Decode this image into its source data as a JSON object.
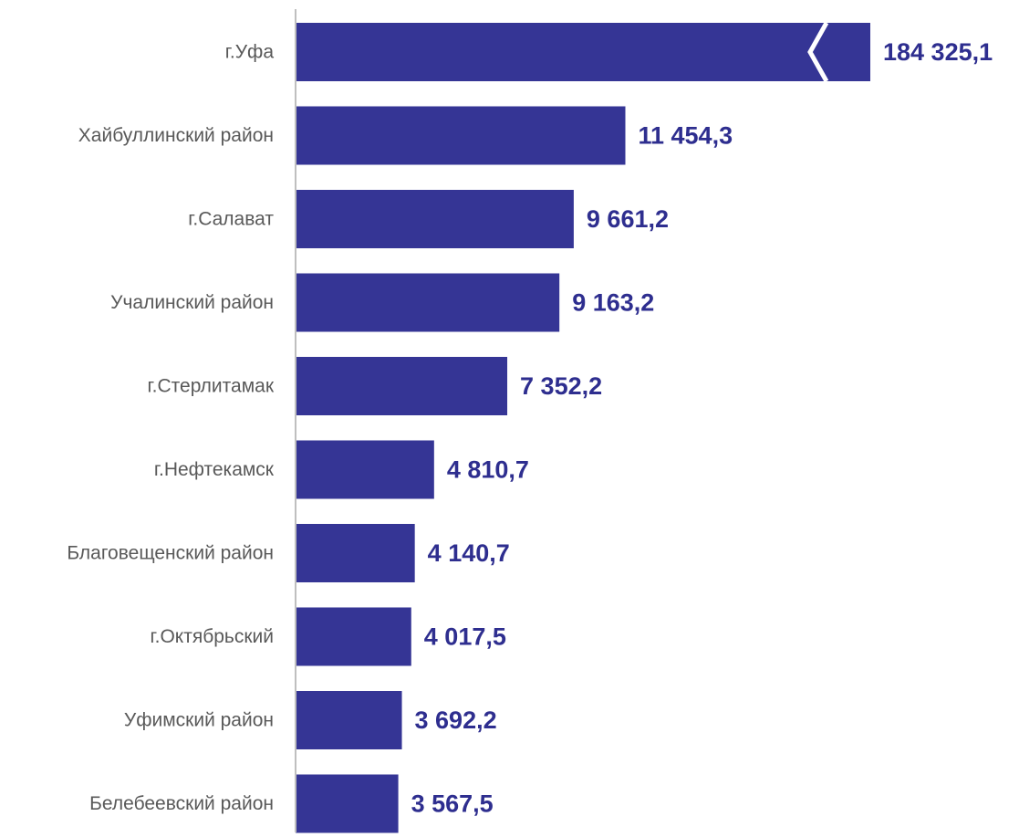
{
  "chart_data": {
    "type": "bar",
    "orientation": "horizontal",
    "axis_break": true,
    "categories": [
      "г.Уфа",
      "Хайбуллинский район",
      "г.Салават",
      "Учалинский район",
      "г.Стерлитамак",
      "г.Нефтекамск",
      "Благовещенский район",
      "г.Октябрьский",
      "Уфимский район",
      "Белебеевский район"
    ],
    "values": [
      184325.1,
      11454.3,
      9661.2,
      9163.2,
      7352.2,
      4810.7,
      4140.7,
      4017.5,
      3692.2,
      3567.5
    ],
    "value_labels": [
      "184 325,1",
      "11 454,3",
      "9 661,2",
      "9 163,2",
      "7 352,2",
      "4 810,7",
      "4 140,7",
      "4 017,5",
      "3 692,2",
      "3 567,5"
    ],
    "title": "",
    "xlabel": "",
    "ylabel": "",
    "grid": false,
    "legend": false,
    "colors": {
      "bar": "#353595",
      "value_label": "#2e2e8f",
      "category_label": "#595959",
      "axis": "#bfbfbf"
    }
  }
}
